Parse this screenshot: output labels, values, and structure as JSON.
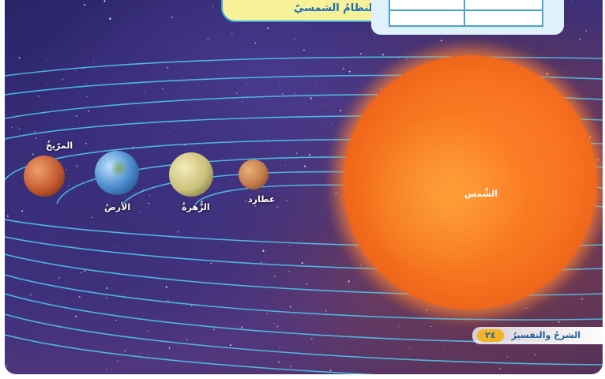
{
  "title": "النظامُ الشمسيّ",
  "bodies": {
    "sun": "الشَّمس",
    "mercury": "عطارد",
    "venus": "الزُّهرةُ",
    "earth": "الأرضُ",
    "mars": "المرّيخُ"
  },
  "footer": {
    "label": "الشرحُ والتفسيرُ",
    "number": "٢٤"
  },
  "colors": {
    "title_bg": "#f7f19a",
    "title_text": "#1d6fb3",
    "accent_blue": "#39a9d9",
    "badge_orange": "#f2b32a"
  }
}
